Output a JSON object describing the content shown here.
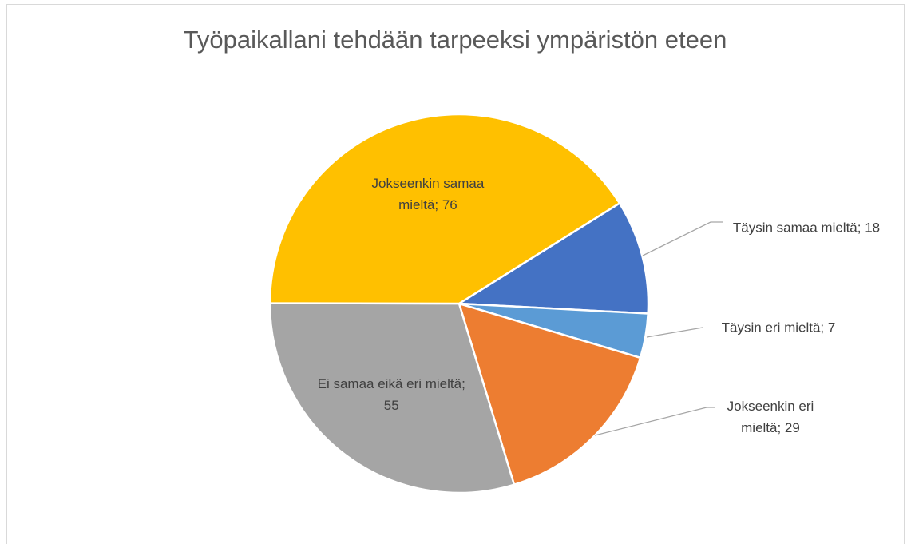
{
  "chart_data": {
    "type": "pie",
    "title": "Työpaikallani tehdään tarpeeksi ympäristön eteen",
    "labels": [
      "Täysin samaa mieltä; 18",
      "Täysin eri mieltä; 7",
      "Jokseenkin eri mieltä; 29",
      "Ei samaa eikä eri mieltä; 55",
      "Jokseenkin samaa mieltä; 76"
    ],
    "values": [
      18,
      7,
      29,
      55,
      76
    ],
    "colors": [
      "#4472c4",
      "#5b9bd5",
      "#ed7d31",
      "#a5a5a5",
      "#ffc000"
    ]
  }
}
